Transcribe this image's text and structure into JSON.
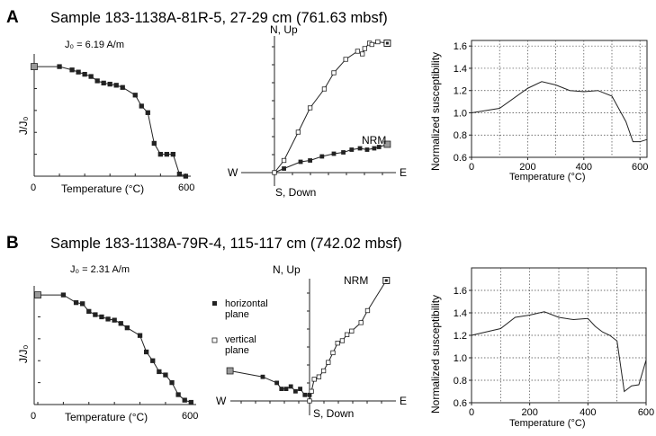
{
  "panels": [
    {
      "letter": "A",
      "title": "Sample 183-1138A-81R-5, 27-29 cm (761.63 mbsf)",
      "demag": {
        "j0_label": "J₀ = 6.19 A/m",
        "ylabel": "J/J₀",
        "xlabel": "Temperature (°C)",
        "x_ticks": [
          "0",
          "600"
        ]
      },
      "zijderveld": {
        "north_label": "N, Up",
        "south_label": "S, Down",
        "west_label": "W",
        "east_label": "E",
        "nrm_label": "NRM"
      },
      "susceptibility": {
        "ylabel": "Normalized susceptibility",
        "xlabel": "Temperature (°C)",
        "y_ticks": [
          "0.6",
          "0.8",
          "1.0",
          "1.2",
          "1.4",
          "1.6"
        ],
        "x_ticks": [
          "0",
          "200",
          "400",
          "600"
        ]
      }
    },
    {
      "letter": "B",
      "title": "Sample 183-1138A-79R-4, 115-117 cm (742.02 mbsf)",
      "demag": {
        "j0_label": "J₀ = 2.31 A/m",
        "ylabel": "J/J₀",
        "xlabel": "Temperature (°C)",
        "x_ticks": [
          "0",
          "600"
        ]
      },
      "zijderveld": {
        "north_label": "N, Up",
        "south_label": "S, Down",
        "west_label": "W",
        "east_label": "E",
        "nrm_label": "NRM",
        "legend_horizontal": "horizontal plane",
        "legend_horizontal_1": "horizontal",
        "legend_horizontal_2": "plane",
        "legend_vertical_1": "vertical",
        "legend_vertical_2": "plane"
      },
      "susceptibility": {
        "ylabel": "Normalized susceptibility",
        "xlabel": "Temperature (°C)",
        "y_ticks": [
          "0.6",
          "0.8",
          "1.0",
          "1.2",
          "1.4",
          "1.6"
        ],
        "x_ticks": [
          "0",
          "200",
          "400",
          "600"
        ]
      }
    }
  ],
  "chart_data": [
    {
      "type": "line",
      "panel": "A",
      "name": "demagnetization",
      "x_unit": "degC",
      "y_unit": "J/J0",
      "x": [
        0,
        100,
        150,
        175,
        200,
        225,
        250,
        275,
        300,
        325,
        350,
        400,
        425,
        450,
        475,
        500,
        525,
        550,
        575,
        600
      ],
      "y": [
        1.0,
        1.0,
        0.97,
        0.95,
        0.93,
        0.91,
        0.87,
        0.85,
        0.84,
        0.83,
        0.81,
        0.74,
        0.64,
        0.58,
        0.3,
        0.2,
        0.2,
        0.2,
        0.02,
        0.0
      ],
      "xlim": [
        0,
        620
      ],
      "ylim": [
        0,
        1.05
      ]
    },
    {
      "type": "line",
      "panel": "A",
      "name": "susceptibility",
      "x": [
        0,
        100,
        200,
        250,
        300,
        350,
        400,
        450,
        500,
        550,
        575,
        600,
        625
      ],
      "y": [
        1.0,
        1.04,
        1.22,
        1.28,
        1.25,
        1.2,
        1.19,
        1.2,
        1.15,
        0.92,
        0.74,
        0.74,
        0.76
      ],
      "xlim": [
        0,
        625
      ],
      "ylim": [
        0.6,
        1.65
      ],
      "grid": true
    },
    {
      "type": "scatter",
      "panel": "A",
      "name": "zijderveld",
      "axes": [
        "W-E",
        "N,Up / S,Down"
      ],
      "horizontal_plane": [
        [
          0,
          0
        ],
        [
          0.08,
          0.03
        ],
        [
          0.22,
          0.08
        ],
        [
          0.3,
          0.09
        ],
        [
          0.4,
          0.12
        ],
        [
          0.5,
          0.14
        ],
        [
          0.58,
          0.15
        ],
        [
          0.65,
          0.17
        ],
        [
          0.72,
          0.18
        ],
        [
          0.78,
          0.17
        ],
        [
          0.84,
          0.18
        ],
        [
          0.88,
          0.19
        ],
        [
          0.95,
          0.21
        ]
      ],
      "vertical_plane": [
        [
          0,
          0
        ],
        [
          0.08,
          0.09
        ],
        [
          0.2,
          0.3
        ],
        [
          0.3,
          0.48
        ],
        [
          0.42,
          0.62
        ],
        [
          0.5,
          0.74
        ],
        [
          0.6,
          0.84
        ],
        [
          0.7,
          0.9
        ],
        [
          0.74,
          0.88
        ],
        [
          0.76,
          0.92
        ],
        [
          0.8,
          0.96
        ],
        [
          0.82,
          0.95
        ],
        [
          0.87,
          0.97
        ],
        [
          0.95,
          0.96
        ]
      ]
    },
    {
      "type": "line",
      "panel": "B",
      "name": "demagnetization",
      "x": [
        0,
        100,
        150,
        175,
        200,
        225,
        250,
        275,
        300,
        325,
        350,
        400,
        425,
        450,
        475,
        500,
        525,
        550,
        575,
        600
      ],
      "y": [
        1.0,
        1.0,
        0.93,
        0.92,
        0.85,
        0.82,
        0.8,
        0.78,
        0.77,
        0.74,
        0.7,
        0.63,
        0.48,
        0.4,
        0.3,
        0.27,
        0.2,
        0.09,
        0.04,
        0.02
      ],
      "xlim": [
        0,
        620
      ],
      "ylim": [
        0,
        1.05
      ]
    },
    {
      "type": "line",
      "panel": "B",
      "name": "susceptibility",
      "x": [
        0,
        100,
        150,
        200,
        250,
        300,
        350,
        400,
        425,
        450,
        475,
        500,
        525,
        550,
        575,
        600
      ],
      "y": [
        1.2,
        1.26,
        1.36,
        1.38,
        1.41,
        1.36,
        1.34,
        1.35,
        1.28,
        1.23,
        1.2,
        1.15,
        0.7,
        0.75,
        0.76,
        0.98
      ],
      "xlim": [
        0,
        600
      ],
      "ylim": [
        0.6,
        1.8
      ],
      "grid": true
    },
    {
      "type": "scatter",
      "panel": "B",
      "name": "zijderveld",
      "horizontal_plane": [
        [
          -0.85,
          0.25
        ],
        [
          -0.5,
          0.2
        ],
        [
          -0.35,
          0.15
        ],
        [
          -0.3,
          0.1
        ],
        [
          -0.25,
          0.1
        ],
        [
          -0.2,
          0.12
        ],
        [
          -0.15,
          0.08
        ],
        [
          -0.1,
          0.1
        ],
        [
          -0.05,
          0.05
        ],
        [
          0,
          0.05
        ]
      ],
      "vertical_plane": [
        [
          0,
          0
        ],
        [
          0.02,
          0.08
        ],
        [
          0.05,
          0.18
        ],
        [
          0.1,
          0.2
        ],
        [
          0.15,
          0.25
        ],
        [
          0.2,
          0.32
        ],
        [
          0.25,
          0.4
        ],
        [
          0.3,
          0.48
        ],
        [
          0.35,
          0.5
        ],
        [
          0.4,
          0.55
        ],
        [
          0.45,
          0.58
        ],
        [
          0.55,
          0.65
        ],
        [
          0.62,
          0.75
        ],
        [
          0.82,
          1.0
        ]
      ]
    }
  ]
}
